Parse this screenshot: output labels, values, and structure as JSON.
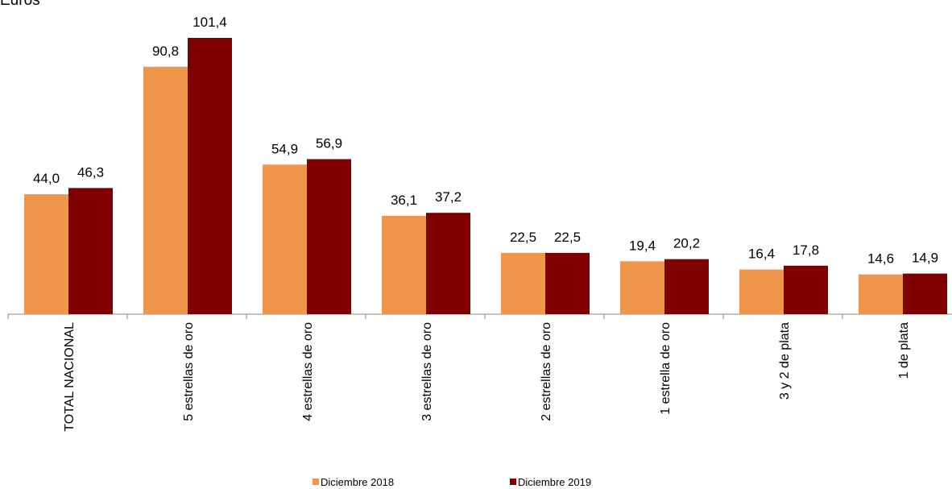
{
  "chart_data": {
    "type": "bar",
    "title": "Euros",
    "categories": [
      "TOTAL NACIONAL",
      "5 estrellas de oro",
      "4 estrellas de oro",
      "3 estrellas de oro",
      "2 estrellas de oro",
      "1 estrella de oro",
      "3 y 2 de plata",
      "1 de plata"
    ],
    "series": [
      {
        "name": "Diciembre 2018",
        "color": "#f0964a",
        "values": [
          44.0,
          90.8,
          54.9,
          36.1,
          22.5,
          19.4,
          16.4,
          14.6
        ],
        "value_labels": [
          "44,0",
          "90,8",
          "54,9",
          "36,1",
          "22,5",
          "19,4",
          "16,4",
          "14,6"
        ]
      },
      {
        "name": "Diciembre 2019",
        "color": "#800000",
        "values": [
          46.3,
          101.4,
          56.9,
          37.2,
          22.5,
          20.2,
          17.8,
          14.9
        ],
        "value_labels": [
          "46,3",
          "101,4",
          "56,9",
          "37,2",
          "22,5",
          "20,2",
          "17,8",
          "14,9"
        ]
      }
    ]
  }
}
